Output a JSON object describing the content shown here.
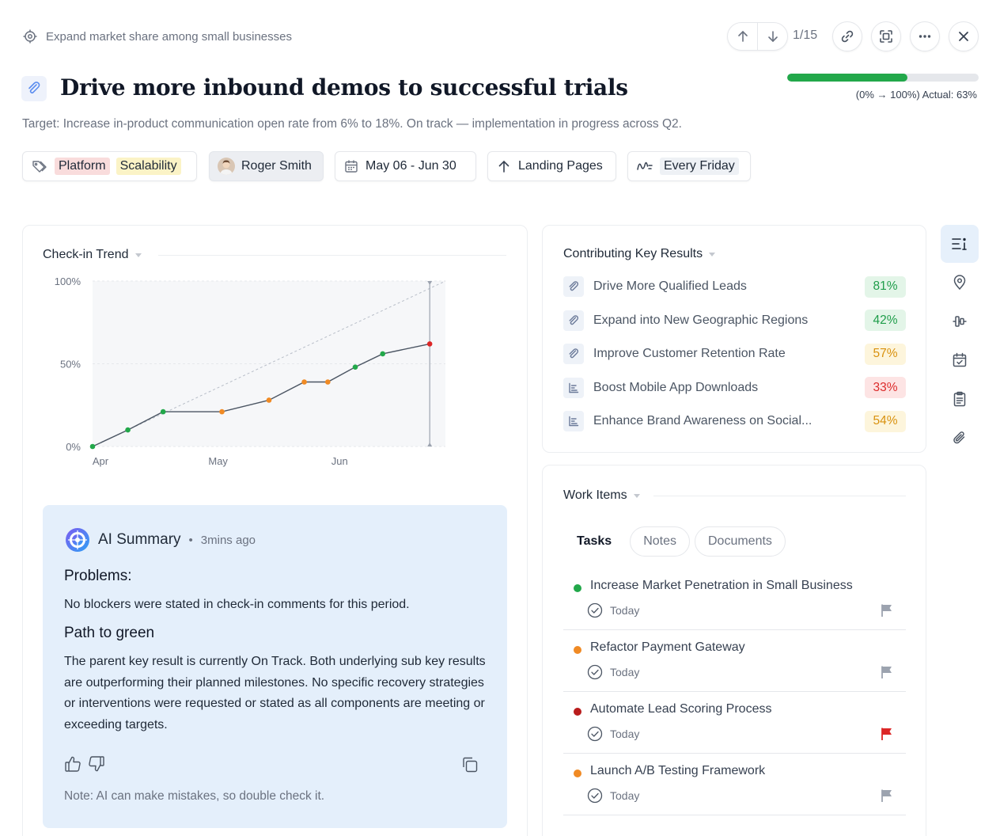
{
  "header": {
    "parent_goal": "Expand market share among small businesses",
    "pager": "1/15",
    "title": "Drive more inbound demos to successful trials",
    "progress": {
      "actual": 0.63,
      "label": "(0% → 100%) Actual: 63%"
    },
    "subtitle": "Target: Increase in-product communication open rate from 6% to 18%. On track — implementation in progress across Q2."
  },
  "chips": {
    "tags": [
      {
        "label": "Platform",
        "color": "#f9dcdc"
      },
      {
        "label": "Scalability",
        "color": "#fbf3c6"
      }
    ],
    "owner": "Roger Smith",
    "dates": "May 06 - Jun 30",
    "parent": "Landing Pages",
    "frequency": "Every Friday"
  },
  "checkin": {
    "title": "Check-in Trend"
  },
  "chart_data": {
    "type": "line",
    "title": "Check-in Trend",
    "x_ticks": [
      "Apr",
      "May",
      "Jun"
    ],
    "y_ticks": [
      "100%",
      "50%",
      "0%"
    ],
    "ylim": [
      0,
      100
    ],
    "xlim": [
      "Apr 1",
      "Jun 30"
    ],
    "series": [
      {
        "name": "",
        "x": [
          "Apr 1",
          "Apr 10",
          "Apr 19",
          "May 4",
          "May 16",
          "May 25",
          "May 31",
          "Jun 7",
          "Jun 14",
          "Jun 26"
        ],
        "values": [
          0,
          10,
          21,
          21,
          28,
          39,
          39,
          48,
          56,
          62
        ],
        "point_colors": [
          "#22a84a",
          "#22a84a",
          "#22a84a",
          "#f08a24",
          "#f08a24",
          "#f08a24",
          "#f08a24",
          "#22a84a",
          "#22a84a",
          "#dc2626"
        ]
      }
    ],
    "target_line": {
      "from": 0,
      "to": 100
    },
    "grid": true
  },
  "ai_summary": {
    "title": "AI Summary",
    "time": "3mins ago",
    "problems_heading": "Problems:",
    "problems_text": "No blockers were stated in check-in comments for this period.",
    "path_heading": "Path to green",
    "path_text": "The parent key result is currently On Track. Both underlying sub key results are outperforming their planned milestones. No specific recovery strategies or interventions were requested or stated as all components are meeting or exceeding targets.",
    "note": "Note: AI can make mistakes, so double check it."
  },
  "key_results": {
    "title": "Contributing Key Results",
    "items": [
      {
        "label": "Drive More Qualified Leads",
        "value": "81%",
        "bg": "#e3f5e8",
        "fg": "#1f9d4a",
        "icon": "paperclip-icon"
      },
      {
        "label": "Expand into New Geographic Regions",
        "value": "42%",
        "bg": "#e3f5e8",
        "fg": "#1f9d4a",
        "icon": "paperclip-icon"
      },
      {
        "label": "Improve Customer Retention Rate",
        "value": "57%",
        "bg": "#fdf5dc",
        "fg": "#d9910e",
        "icon": "paperclip-icon"
      },
      {
        "label": "Boost Mobile App Downloads",
        "value": "33%",
        "bg": "#fde4e4",
        "fg": "#dc2b2b",
        "icon": "bars-icon"
      },
      {
        "label": "Enhance Brand Awareness on Social...",
        "value": "54%",
        "bg": "#fdf5dc",
        "fg": "#d9910e",
        "icon": "bars-icon"
      }
    ]
  },
  "work_items": {
    "title": "Work Items",
    "tabs": [
      "Tasks",
      "Notes",
      "Documents"
    ],
    "items": [
      {
        "name": "Increase Market Penetration in Small Business",
        "due": "Today",
        "status_color": "#22a84a",
        "flag_color": "#9ca3af"
      },
      {
        "name": "Refactor Payment Gateway",
        "due": "Today",
        "status_color": "#f08a24",
        "flag_color": "#9ca3af"
      },
      {
        "name": "Automate Lead Scoring Process",
        "due": "Today",
        "status_color": "#b91c1c",
        "flag_color": "#dc2626"
      },
      {
        "name": "Launch A/B Testing Framework",
        "due": "Today",
        "status_color": "#f08a24",
        "flag_color": "#9ca3af"
      }
    ]
  }
}
